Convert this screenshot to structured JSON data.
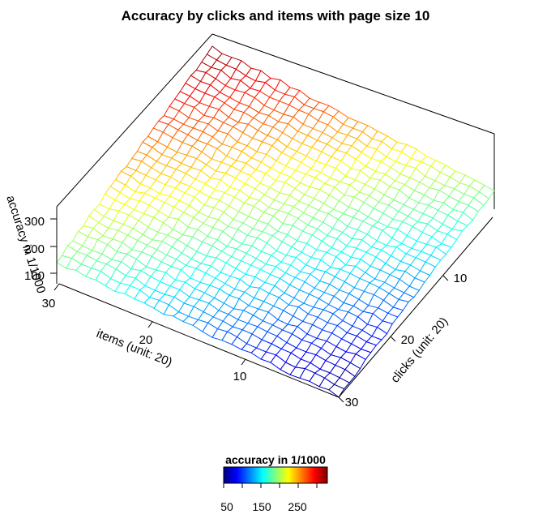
{
  "chart_data": {
    "type": "surface",
    "title": "Accuracy by clicks and items with page size 10",
    "xlabel": "clicks (unit: 20)",
    "ylabel": "items (unit: 20)",
    "zlabel": "accuracy in 1/1000",
    "grid_size": 30,
    "x_ticks": [
      "10",
      "20",
      "30"
    ],
    "y_ticks": [
      "30",
      "20",
      "10"
    ],
    "z_ticks": [
      "300",
      "200",
      "100"
    ],
    "zlim": [
      20,
      340
    ],
    "corner_values": {
      "items_1_clicks_1": 330,
      "items_1_clicks_30": 180,
      "items_30_clicks_1": 175,
      "items_30_clicks_30": 25
    },
    "colorbar": {
      "title": "accuracy in 1/1000",
      "tick_labels": [
        "50",
        "150",
        "250"
      ],
      "range": [
        25,
        330
      ],
      "colors": [
        "#00007F",
        "#0000FF",
        "#007FFF",
        "#00FFFF",
        "#7FFF7F",
        "#FFFF00",
        "#FF7F00",
        "#FF0000",
        "#7F0000"
      ]
    }
  }
}
